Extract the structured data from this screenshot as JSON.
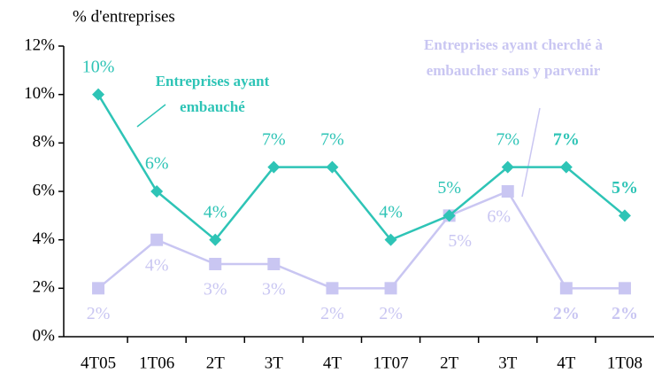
{
  "chart_data": {
    "type": "line",
    "y_label": "% d'entreprises",
    "categories": [
      "4T05",
      "1T06",
      "2T",
      "3T",
      "4T",
      "1T07",
      "2T",
      "3T",
      "4T",
      "1T08"
    ],
    "series": [
      {
        "color": "#2ec4b6",
        "marker": "diamond",
        "values": [
          10,
          6,
          4,
          7,
          7,
          4,
          5,
          7,
          7,
          5
        ],
        "value_labels": [
          "10%",
          "6%",
          "4%",
          "7%",
          "7%",
          "4%",
          "5%",
          "7%",
          "7%",
          "5%"
        ]
      },
      {
        "color": "#c9c6f2",
        "marker": "square",
        "values": [
          2,
          4,
          3,
          3,
          2,
          2,
          5,
          6,
          2,
          2
        ],
        "value_labels": [
          "2%",
          "4%",
          "3%",
          "3%",
          "2%",
          "2%",
          "5%",
          "6%",
          "2%",
          "2%"
        ]
      }
    ],
    "annotations": [
      {
        "lines": [
          "Entreprises ayant",
          "embauché"
        ],
        "color": "#2ec4b6"
      },
      {
        "lines": [
          "Entreprises ayant cherché à",
          "embaucher sans y parvenir"
        ],
        "color": "#c9c6f2"
      }
    ],
    "ylim": [
      0,
      12
    ],
    "yticks": [
      {
        "value": 0,
        "label": "0%"
      },
      {
        "value": 2,
        "label": "2%"
      },
      {
        "value": 4,
        "label": "4%"
      },
      {
        "value": 6,
        "label": "6%"
      },
      {
        "value": 8,
        "label": "8%"
      },
      {
        "value": 10,
        "label": "10%"
      },
      {
        "value": 12,
        "label": "12%"
      }
    ]
  }
}
